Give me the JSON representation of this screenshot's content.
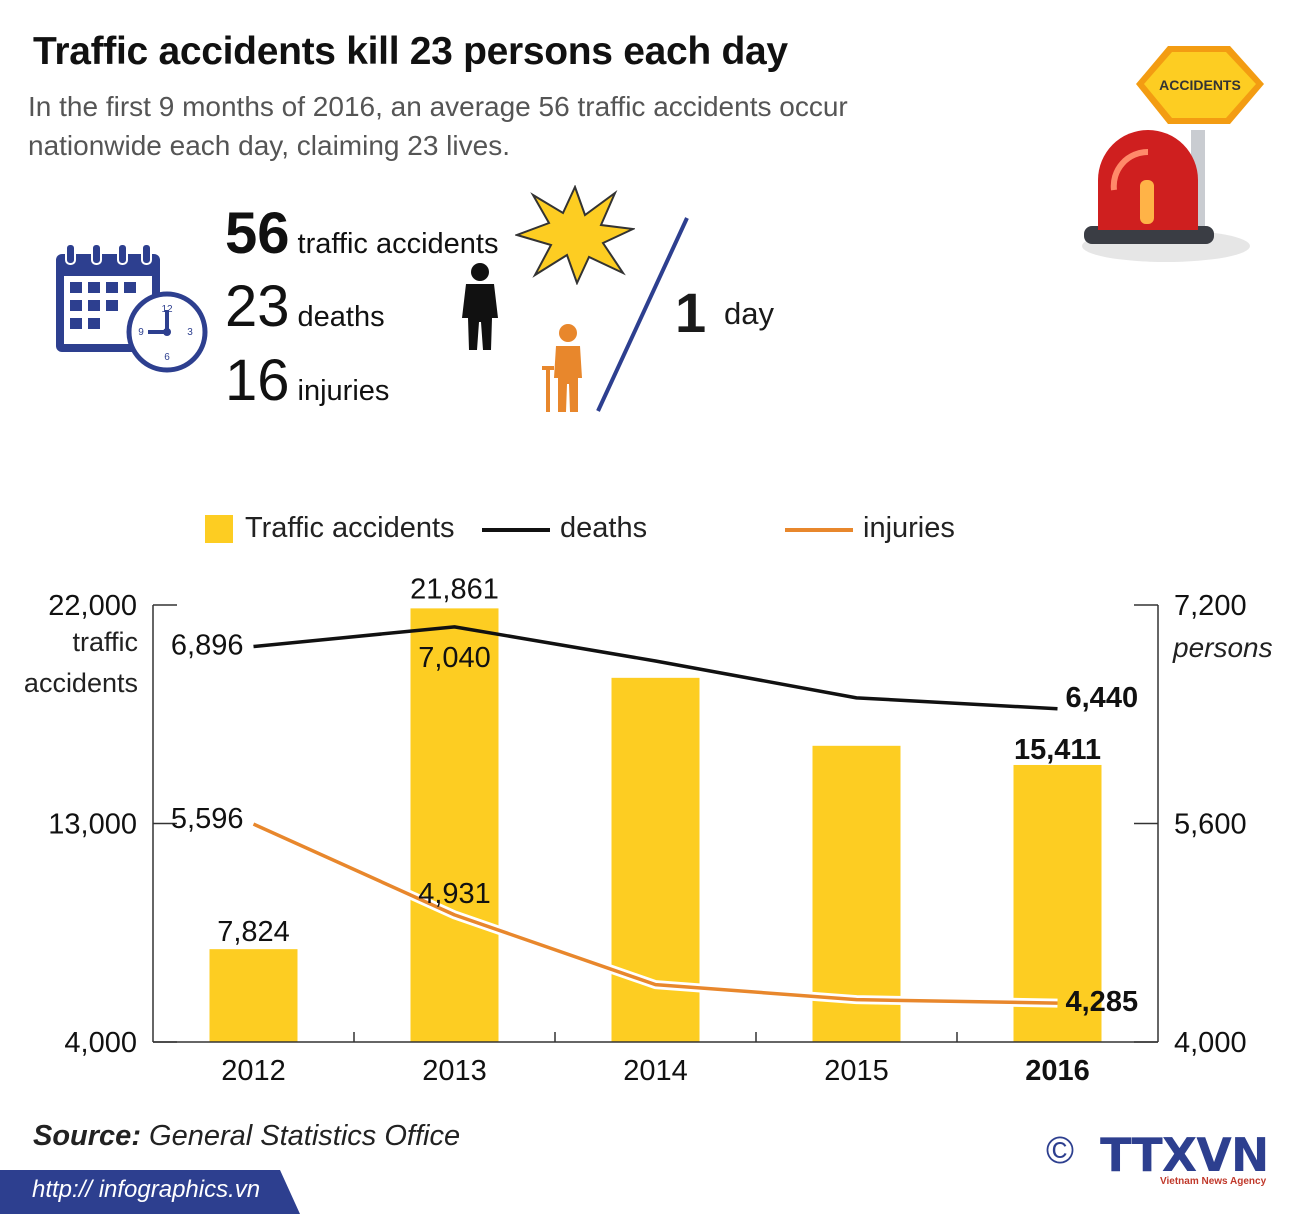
{
  "header": {
    "title": "Traffic accidents kill 23 persons each day",
    "subtitle": "In the first 9 months of 2016, an average 56 traffic accidents occur nationwide each day, claiming 23 lives."
  },
  "sign": {
    "label": "ACCIDENTS"
  },
  "stats": {
    "accidents_num": "56",
    "accidents_label": "traffic accidents",
    "deaths_num": "23",
    "deaths_label": "deaths",
    "injuries_num": "16",
    "injuries_label": "injuries",
    "per_num": "1",
    "per_label": "day"
  },
  "clock": {
    "n12": "12",
    "n3": "3",
    "n6": "6",
    "n9": "9"
  },
  "legend": {
    "accidents": "Traffic accidents",
    "deaths": "deaths",
    "injuries": "injuries"
  },
  "colors": {
    "bar": "#fdcd22",
    "deaths": "#111111",
    "injuries": "#e8872c",
    "brand": "#2d3f8f"
  },
  "chart_data": {
    "type": "bar",
    "categories": [
      "2012",
      "2013",
      "2014",
      "2015",
      "2016"
    ],
    "series": [
      {
        "name": "Traffic accidents",
        "type": "bar",
        "axis": "left",
        "values": [
          7824,
          21861,
          19000,
          16200,
          15411
        ]
      },
      {
        "name": "deaths",
        "type": "line",
        "axis": "right",
        "values": [
          6896,
          7040,
          6790,
          6520,
          6440
        ]
      },
      {
        "name": "injuries",
        "type": "line",
        "axis": "right",
        "values": [
          5596,
          4931,
          4420,
          4310,
          4285
        ]
      }
    ],
    "bar_labels": [
      "7,824",
      "21,861",
      "",
      "",
      "15,411"
    ],
    "deaths_labels": [
      "6,896",
      "7,040",
      "",
      "",
      "6,440"
    ],
    "injuries_labels": [
      "5,596",
      "4,931",
      "",
      "",
      "4,285"
    ],
    "left_axis": {
      "ticks": [
        "22,000",
        "13,000",
        "4,000"
      ],
      "tick_values": [
        22000,
        13000,
        4000
      ],
      "range": [
        4000,
        22000
      ],
      "label": "traffic accidents"
    },
    "right_axis": {
      "ticks": [
        "7,200",
        "5,600",
        "4,000"
      ],
      "tick_values": [
        7200,
        5600,
        4000
      ],
      "range": [
        4000,
        7200
      ],
      "label": "persons"
    },
    "legend_position": "top"
  },
  "footer": {
    "source_label": "Source:",
    "source_text": "General Statistics Office",
    "url": "http:// infographics.vn",
    "copyright": "©",
    "brand": "TTXVN",
    "brand_sub": "Vietnam News Agency"
  }
}
